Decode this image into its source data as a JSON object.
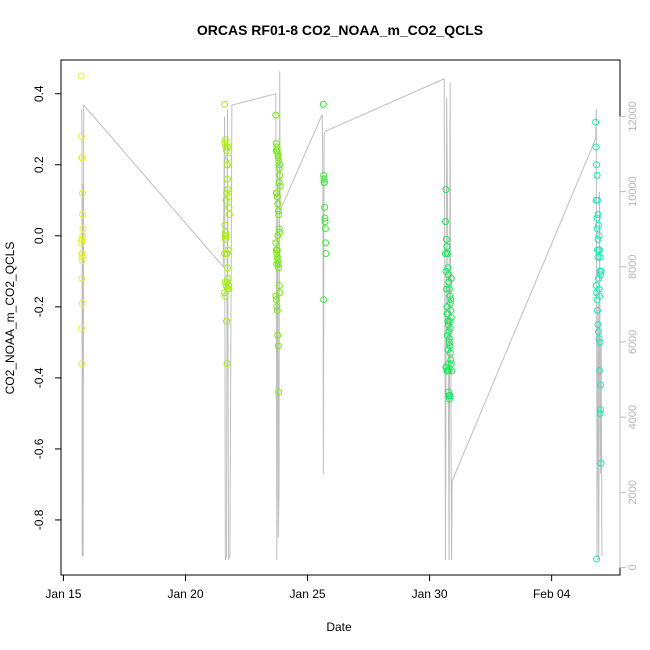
{
  "chart_data": {
    "type": "scatter",
    "title": "ORCAS RF01-8 CO2_NOAA_m_CO2_QCLS",
    "xlabel": "Date",
    "ylabel": "CO2_NOAA_m_CO2_QCLS",
    "x_start": "2016-01-15",
    "xlim": [
      -0.1,
      22.8
    ],
    "ylim": [
      -0.955,
      0.495
    ],
    "ylim_right": [
      -200,
      13500
    ],
    "x_ticks": [
      {
        "day": 0,
        "label": "Jan 15"
      },
      {
        "day": 5,
        "label": "Jan 20"
      },
      {
        "day": 10,
        "label": "Jan 25"
      },
      {
        "day": 15,
        "label": "Jan 30"
      },
      {
        "day": 20,
        "label": "Feb 04"
      }
    ],
    "y_ticks": [
      {
        "value": 0.4,
        "label": "0.4"
      },
      {
        "value": 0.2,
        "label": "0.2"
      },
      {
        "value": 0.0,
        "label": "0.0"
      },
      {
        "value": -0.2,
        "label": "-0.2"
      },
      {
        "value": -0.4,
        "label": "-0.4"
      },
      {
        "value": -0.6,
        "label": "-0.6"
      },
      {
        "value": -0.8,
        "label": "-0.8"
      }
    ],
    "y2_ticks": [
      {
        "value": 0,
        "label": "0"
      },
      {
        "value": 2000,
        "label": "2000"
      },
      {
        "value": 4000,
        "label": "4000"
      },
      {
        "value": 6000,
        "label": "6000"
      },
      {
        "value": 8000,
        "label": "8000"
      },
      {
        "value": 10000,
        "label": "10000"
      },
      {
        "value": 12000,
        "label": "12000"
      }
    ],
    "grid": false,
    "legend": "none",
    "altitude_color": "#bebebe",
    "altitude_trace": [
      [
        0.75,
        12200
      ],
      [
        0.76,
        11500
      ],
      [
        0.77,
        300
      ],
      [
        0.79,
        10200
      ],
      [
        0.81,
        300
      ],
      [
        0.83,
        12300
      ],
      [
        6.55,
        8000
      ],
      [
        6.6,
        12000
      ],
      [
        6.63,
        200
      ],
      [
        6.68,
        300
      ],
      [
        6.72,
        12200
      ],
      [
        6.76,
        200
      ],
      [
        6.82,
        300
      ],
      [
        6.9,
        12300
      ],
      [
        8.7,
        12600
      ],
      [
        8.72,
        9000
      ],
      [
        8.74,
        200
      ],
      [
        8.78,
        11000
      ],
      [
        8.8,
        800
      ],
      [
        8.83,
        2000
      ],
      [
        8.86,
        13200
      ],
      [
        8.88,
        9500
      ],
      [
        10.6,
        12050
      ],
      [
        10.63,
        10000
      ],
      [
        10.65,
        2500
      ],
      [
        10.68,
        11500
      ],
      [
        10.72,
        11600
      ],
      [
        15.6,
        13000
      ],
      [
        15.63,
        5000
      ],
      [
        15.65,
        200
      ],
      [
        15.7,
        12500
      ],
      [
        15.75,
        8000
      ],
      [
        15.8,
        200
      ],
      [
        15.84,
        12900
      ],
      [
        15.88,
        3000
      ],
      [
        15.9,
        200
      ],
      [
        15.92,
        2300
      ],
      [
        21.8,
        11400
      ],
      [
        21.83,
        12200
      ],
      [
        21.86,
        200
      ],
      [
        21.9,
        7000
      ],
      [
        21.93,
        200
      ],
      [
        21.96,
        10000
      ],
      [
        22.0,
        2500
      ],
      [
        22.03,
        6000
      ],
      [
        22.06,
        300
      ]
    ],
    "series": [
      {
        "color": "#e6f226",
        "x": [
          0.73,
          0.74,
          0.75,
          0.76,
          0.77,
          0.78,
          0.79,
          0.8,
          0.74,
          0.75,
          0.76,
          0.77,
          0.78,
          0.76,
          0.75,
          0.77,
          0.74,
          0.76,
          0.78,
          0.75
        ],
        "y": [
          0.45,
          0.28,
          0.22,
          0.22,
          0.22,
          0.12,
          0.0,
          0.02,
          -0.02,
          -0.01,
          -0.01,
          -0.05,
          -0.06,
          -0.07,
          -0.12,
          -0.19,
          -0.26,
          -0.36,
          0.06,
          -0.05
        ]
      },
      {
        "color": "#a6ee14",
        "x": [
          6.6,
          6.62,
          6.64,
          6.66,
          6.68,
          6.7,
          6.72,
          6.74,
          6.76,
          6.78,
          6.8,
          6.62,
          6.64,
          6.66,
          6.68,
          6.7,
          6.72,
          6.74,
          6.76,
          6.78,
          6.6,
          6.62,
          6.64,
          6.66,
          6.68,
          6.7,
          6.72,
          6.74,
          6.76,
          6.6,
          6.62,
          6.64,
          6.66,
          6.68,
          6.7,
          6.72,
          6.74
        ],
        "y": [
          0.37,
          0.26,
          0.27,
          0.25,
          0.24,
          0.2,
          0.16,
          0.13,
          0.11,
          0.08,
          0.06,
          0.03,
          0.01,
          0.0,
          -0.05,
          -0.05,
          -0.09,
          -0.12,
          -0.14,
          -0.15,
          -0.16,
          -0.17,
          -0.13,
          -0.14,
          -0.24,
          -0.36,
          0.2,
          0.25,
          0.22,
          -0.05,
          0.0,
          -0.01,
          0.1,
          0.12,
          -0.13,
          -0.15,
          -0.04
        ]
      },
      {
        "color": "#78ea10",
        "x": [
          8.7,
          8.72,
          8.74,
          8.76,
          8.78,
          8.8,
          8.82,
          8.84,
          8.86,
          8.88,
          8.72,
          8.74,
          8.76,
          8.78,
          8.8,
          8.82,
          8.84,
          8.86,
          8.7,
          8.72,
          8.74,
          8.76,
          8.78,
          8.8,
          8.82,
          8.84,
          8.86,
          8.7,
          8.72,
          8.74,
          8.76,
          8.78,
          8.8,
          8.82,
          8.84,
          8.86,
          8.72,
          8.74,
          8.76,
          8.78
        ],
        "y": [
          0.34,
          0.26,
          0.25,
          0.24,
          0.23,
          0.22,
          0.21,
          0.19,
          0.17,
          0.14,
          0.12,
          0.12,
          0.11,
          0.09,
          0.07,
          0.06,
          0.02,
          0.01,
          -0.02,
          -0.04,
          -0.05,
          -0.06,
          -0.07,
          -0.08,
          -0.09,
          -0.14,
          -0.16,
          -0.17,
          -0.18,
          -0.2,
          -0.21,
          -0.28,
          -0.31,
          -0.44,
          0.15,
          0.2,
          0.24,
          -0.08,
          -0.04,
          0.0
        ]
      },
      {
        "color": "#3fe83a",
        "x": [
          10.65,
          10.66,
          10.67,
          10.68,
          10.69,
          10.7,
          10.71,
          10.72,
          10.73,
          10.74,
          10.75,
          10.66
        ],
        "y": [
          0.37,
          0.17,
          0.16,
          0.15,
          0.15,
          0.08,
          0.05,
          0.04,
          0.02,
          -0.02,
          -0.05,
          -0.18
        ]
      },
      {
        "color": "#18e85a",
        "x": [
          15.65,
          15.67,
          15.69,
          15.71,
          15.73,
          15.75,
          15.77,
          15.79,
          15.81,
          15.83,
          15.85,
          15.87,
          15.89,
          15.65,
          15.67,
          15.69,
          15.71,
          15.73,
          15.75,
          15.77,
          15.79,
          15.81,
          15.83,
          15.85,
          15.87,
          15.89,
          15.91,
          15.67,
          15.69,
          15.71,
          15.73,
          15.75,
          15.77,
          15.79,
          15.81,
          15.83,
          15.85,
          15.87,
          15.89,
          15.71,
          15.73,
          15.75,
          15.77,
          15.79,
          15.81,
          15.83
        ],
        "y": [
          0.04,
          0.13,
          -0.01,
          -0.03,
          -0.05,
          -0.09,
          -0.11,
          -0.13,
          -0.15,
          -0.17,
          -0.19,
          -0.21,
          -0.23,
          -0.05,
          -0.1,
          -0.15,
          -0.2,
          -0.22,
          -0.24,
          -0.25,
          -0.27,
          -0.29,
          -0.31,
          -0.33,
          -0.35,
          -0.36,
          -0.38,
          -0.37,
          -0.37,
          -0.38,
          -0.38,
          -0.38,
          -0.44,
          -0.45,
          -0.46,
          -0.45,
          -0.26,
          -0.18,
          -0.12,
          -0.22,
          -0.28,
          -0.32,
          -0.36,
          -0.38,
          -0.3,
          -0.24
        ]
      },
      {
        "color": "#1ae8b4",
        "x": [
          21.8,
          21.82,
          21.84,
          21.86,
          21.88,
          21.9,
          21.92,
          21.94,
          21.96,
          21.98,
          22.0,
          22.02,
          21.82,
          21.84,
          21.86,
          21.88,
          21.9,
          21.92,
          21.94,
          21.96,
          21.98,
          22.0,
          22.02,
          21.84,
          21.86,
          21.88,
          21.9,
          21.92,
          21.94,
          21.96,
          21.98,
          22.0,
          21.82,
          21.86,
          21.9,
          21.94,
          21.98
        ],
        "y": [
          0.32,
          0.25,
          0.2,
          0.17,
          0.1,
          0.06,
          0.03,
          0.0,
          -0.04,
          -0.06,
          -0.11,
          -0.1,
          -0.14,
          -0.16,
          -0.18,
          -0.21,
          -0.25,
          -0.27,
          -0.29,
          -0.38,
          -0.5,
          -0.49,
          -0.64,
          -0.91,
          0.02,
          -0.04,
          -0.06,
          -0.12,
          -0.15,
          -0.17,
          -0.3,
          -0.42,
          0.1,
          0.05,
          -0.01,
          -0.04,
          -0.1
        ]
      }
    ]
  }
}
